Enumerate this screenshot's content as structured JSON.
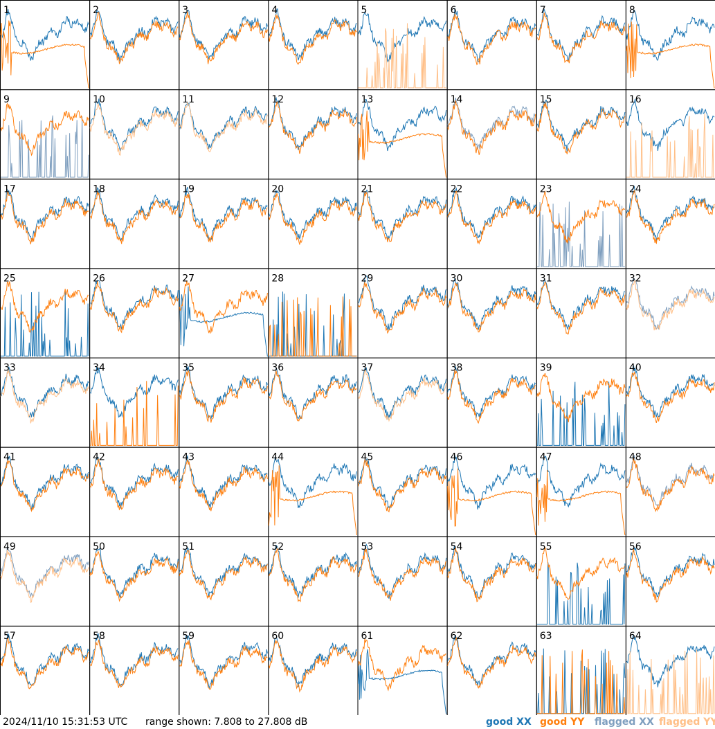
{
  "footer": {
    "timestamp": "2024/11/10 15:31:53 UTC",
    "range_text": "range shown: 7.808 to 27.808 dB"
  },
  "legend": [
    {
      "label": "good XX",
      "color": "#1f77b4"
    },
    {
      "label": "good YY",
      "color": "#ff7f0e"
    },
    {
      "label": "flagged XX",
      "color": "#7f9fbf"
    },
    {
      "label": "flagged YY",
      "color": "#ffbf87"
    }
  ],
  "chart_data": {
    "type": "line",
    "ylim": [
      7.808,
      27.808
    ],
    "grid": false,
    "legend_position": "bottom-right",
    "panels": [
      {
        "label": "1",
        "xx": "good",
        "yy": "good",
        "xx_style": "normal",
        "yy_style": "dead"
      },
      {
        "label": "2",
        "xx": "good",
        "yy": "good",
        "xx_style": "normal",
        "yy_style": "normal"
      },
      {
        "label": "3",
        "xx": "good",
        "yy": "good",
        "xx_style": "normal",
        "yy_style": "normal"
      },
      {
        "label": "4",
        "xx": "good",
        "yy": "good",
        "xx_style": "normal",
        "yy_style": "normal"
      },
      {
        "label": "5",
        "xx": "good",
        "yy": "flagged",
        "xx_style": "normal",
        "yy_style": "spikes"
      },
      {
        "label": "6",
        "xx": "good",
        "yy": "good",
        "xx_style": "normal",
        "yy_style": "normal"
      },
      {
        "label": "7",
        "xx": "good",
        "yy": "good",
        "xx_style": "normal",
        "yy_style": "normal"
      },
      {
        "label": "8",
        "xx": "good",
        "yy": "good",
        "xx_style": "normal",
        "yy_style": "dead"
      },
      {
        "label": "9",
        "xx": "flagged",
        "yy": "good",
        "xx_style": "spikes",
        "yy_style": "normal"
      },
      {
        "label": "10",
        "xx": "good",
        "yy": "flagged",
        "xx_style": "normal",
        "yy_style": "normal"
      },
      {
        "label": "11",
        "xx": "good",
        "yy": "flagged",
        "xx_style": "normal",
        "yy_style": "normal"
      },
      {
        "label": "12",
        "xx": "good",
        "yy": "good",
        "xx_style": "normal",
        "yy_style": "normal"
      },
      {
        "label": "13",
        "xx": "good",
        "yy": "good",
        "xx_style": "normal",
        "yy_style": "dead"
      },
      {
        "label": "14",
        "xx": "flagged",
        "yy": "good",
        "xx_style": "normal",
        "yy_style": "normal"
      },
      {
        "label": "15",
        "xx": "good",
        "yy": "good",
        "xx_style": "normal",
        "yy_style": "normal"
      },
      {
        "label": "16",
        "xx": "good",
        "yy": "flagged",
        "xx_style": "normal",
        "yy_style": "spikes"
      },
      {
        "label": "17",
        "xx": "good",
        "yy": "good",
        "xx_style": "normal",
        "yy_style": "normal"
      },
      {
        "label": "18",
        "xx": "good",
        "yy": "good",
        "xx_style": "normal",
        "yy_style": "normal"
      },
      {
        "label": "19",
        "xx": "good",
        "yy": "good",
        "xx_style": "normal",
        "yy_style": "normal"
      },
      {
        "label": "20",
        "xx": "good",
        "yy": "good",
        "xx_style": "normal",
        "yy_style": "normal"
      },
      {
        "label": "21",
        "xx": "good",
        "yy": "good",
        "xx_style": "normal",
        "yy_style": "normal"
      },
      {
        "label": "22",
        "xx": "good",
        "yy": "good",
        "xx_style": "normal",
        "yy_style": "normal"
      },
      {
        "label": "23",
        "xx": "flagged",
        "yy": "good",
        "xx_style": "spikes",
        "yy_style": "normal"
      },
      {
        "label": "24",
        "xx": "good",
        "yy": "good",
        "xx_style": "normal",
        "yy_style": "normal"
      },
      {
        "label": "25",
        "xx": "good",
        "yy": "good",
        "xx_style": "spikes",
        "yy_style": "normal"
      },
      {
        "label": "26",
        "xx": "good",
        "yy": "good",
        "xx_style": "normal",
        "yy_style": "normal"
      },
      {
        "label": "27",
        "xx": "good",
        "yy": "good",
        "xx_style": "dead",
        "yy_style": "normal"
      },
      {
        "label": "28",
        "xx": "good",
        "yy": "good",
        "xx_style": "spikes",
        "yy_style": "spikes"
      },
      {
        "label": "29",
        "xx": "good",
        "yy": "good",
        "xx_style": "normal",
        "yy_style": "normal"
      },
      {
        "label": "30",
        "xx": "good",
        "yy": "good",
        "xx_style": "normal",
        "yy_style": "normal"
      },
      {
        "label": "31",
        "xx": "good",
        "yy": "good",
        "xx_style": "normal",
        "yy_style": "normal"
      },
      {
        "label": "32",
        "xx": "flagged",
        "yy": "flagged",
        "xx_style": "normal",
        "yy_style": "normal"
      },
      {
        "label": "33",
        "xx": "good",
        "yy": "flagged",
        "xx_style": "normal",
        "yy_style": "normal"
      },
      {
        "label": "34",
        "xx": "good",
        "yy": "good",
        "xx_style": "normal",
        "yy_style": "spikes"
      },
      {
        "label": "35",
        "xx": "good",
        "yy": "good",
        "xx_style": "normal",
        "yy_style": "normal"
      },
      {
        "label": "36",
        "xx": "good",
        "yy": "good",
        "xx_style": "normal",
        "yy_style": "normal"
      },
      {
        "label": "37",
        "xx": "good",
        "yy": "flagged",
        "xx_style": "normal",
        "yy_style": "normal"
      },
      {
        "label": "38",
        "xx": "good",
        "yy": "good",
        "xx_style": "normal",
        "yy_style": "normal"
      },
      {
        "label": "39",
        "xx": "good",
        "yy": "good",
        "xx_style": "spikes",
        "yy_style": "normal"
      },
      {
        "label": "40",
        "xx": "good",
        "yy": "good",
        "xx_style": "normal",
        "yy_style": "normal"
      },
      {
        "label": "41",
        "xx": "good",
        "yy": "good",
        "xx_style": "normal",
        "yy_style": "normal"
      },
      {
        "label": "42",
        "xx": "good",
        "yy": "good",
        "xx_style": "normal",
        "yy_style": "normal"
      },
      {
        "label": "43",
        "xx": "good",
        "yy": "good",
        "xx_style": "normal",
        "yy_style": "normal"
      },
      {
        "label": "44",
        "xx": "good",
        "yy": "good",
        "xx_style": "normal",
        "yy_style": "dead"
      },
      {
        "label": "45",
        "xx": "good",
        "yy": "good",
        "xx_style": "normal",
        "yy_style": "normal"
      },
      {
        "label": "46",
        "xx": "good",
        "yy": "good",
        "xx_style": "normal",
        "yy_style": "dead"
      },
      {
        "label": "47",
        "xx": "good",
        "yy": "good",
        "xx_style": "normal",
        "yy_style": "dead"
      },
      {
        "label": "48",
        "xx": "flagged",
        "yy": "good",
        "xx_style": "normal",
        "yy_style": "normal"
      },
      {
        "label": "49",
        "xx": "flagged",
        "yy": "flagged",
        "xx_style": "normal",
        "yy_style": "normal"
      },
      {
        "label": "50",
        "xx": "good",
        "yy": "good",
        "xx_style": "normal",
        "yy_style": "normal"
      },
      {
        "label": "51",
        "xx": "good",
        "yy": "good",
        "xx_style": "normal",
        "yy_style": "normal"
      },
      {
        "label": "52",
        "xx": "good",
        "yy": "good",
        "xx_style": "normal",
        "yy_style": "normal"
      },
      {
        "label": "53",
        "xx": "good",
        "yy": "good",
        "xx_style": "normal",
        "yy_style": "normal"
      },
      {
        "label": "54",
        "xx": "good",
        "yy": "good",
        "xx_style": "normal",
        "yy_style": "normal"
      },
      {
        "label": "55",
        "xx": "good",
        "yy": "good",
        "xx_style": "spikes",
        "yy_style": "normal"
      },
      {
        "label": "56",
        "xx": "good",
        "yy": "good",
        "xx_style": "normal",
        "yy_style": "normal"
      },
      {
        "label": "57",
        "xx": "good",
        "yy": "good",
        "xx_style": "normal",
        "yy_style": "normal"
      },
      {
        "label": "58",
        "xx": "good",
        "yy": "good",
        "xx_style": "normal",
        "yy_style": "normal"
      },
      {
        "label": "59",
        "xx": "good",
        "yy": "good",
        "xx_style": "normal",
        "yy_style": "normal"
      },
      {
        "label": "60",
        "xx": "good",
        "yy": "good",
        "xx_style": "normal",
        "yy_style": "normal"
      },
      {
        "label": "61",
        "xx": "good",
        "yy": "good",
        "xx_style": "dead",
        "yy_style": "normal"
      },
      {
        "label": "62",
        "xx": "good",
        "yy": "good",
        "xx_style": "normal",
        "yy_style": "normal"
      },
      {
        "label": "63",
        "xx": "good",
        "yy": "good",
        "xx_style": "spikes",
        "yy_style": "spikes"
      },
      {
        "label": "64",
        "xx": "good",
        "yy": "flagged",
        "xx_style": "normal",
        "yy_style": "spikes"
      }
    ]
  }
}
